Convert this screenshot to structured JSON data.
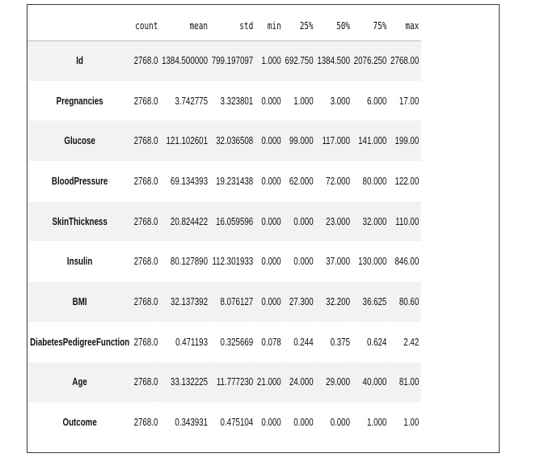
{
  "columns": [
    "count",
    "mean",
    "std",
    "min",
    "25%",
    "50%",
    "75%",
    "max"
  ],
  "rows": [
    {
      "label": "Id",
      "values": [
        "2768.0",
        "1384.500000",
        "799.197097",
        "1.000",
        "692.750",
        "1384.500",
        "2076.250",
        "2768.00"
      ]
    },
    {
      "label": "Pregnancies",
      "values": [
        "2768.0",
        "3.742775",
        "3.323801",
        "0.000",
        "1.000",
        "3.000",
        "6.000",
        "17.00"
      ]
    },
    {
      "label": "Glucose",
      "values": [
        "2768.0",
        "121.102601",
        "32.036508",
        "0.000",
        "99.000",
        "117.000",
        "141.000",
        "199.00"
      ]
    },
    {
      "label": "BloodPressure",
      "values": [
        "2768.0",
        "69.134393",
        "19.231438",
        "0.000",
        "62.000",
        "72.000",
        "80.000",
        "122.00"
      ]
    },
    {
      "label": "SkinThickness",
      "values": [
        "2768.0",
        "20.824422",
        "16.059596",
        "0.000",
        "0.000",
        "23.000",
        "32.000",
        "110.00"
      ]
    },
    {
      "label": "Insulin",
      "values": [
        "2768.0",
        "80.127890",
        "112.301933",
        "0.000",
        "0.000",
        "37.000",
        "130.000",
        "846.00"
      ]
    },
    {
      "label": "BMI",
      "values": [
        "2768.0",
        "32.137392",
        "8.076127",
        "0.000",
        "27.300",
        "32.200",
        "36.625",
        "80.60"
      ]
    },
    {
      "label": "DiabetesPedigreeFunction",
      "values": [
        "2768.0",
        "0.471193",
        "0.325669",
        "0.078",
        "0.244",
        "0.375",
        "0.624",
        "2.42"
      ]
    },
    {
      "label": "Age",
      "values": [
        "2768.0",
        "33.132225",
        "11.777230",
        "21.000",
        "24.000",
        "29.000",
        "40.000",
        "81.00"
      ]
    },
    {
      "label": "Outcome",
      "values": [
        "2768.0",
        "0.343931",
        "0.475104",
        "0.000",
        "0.000",
        "0.000",
        "1.000",
        "1.00"
      ]
    }
  ]
}
